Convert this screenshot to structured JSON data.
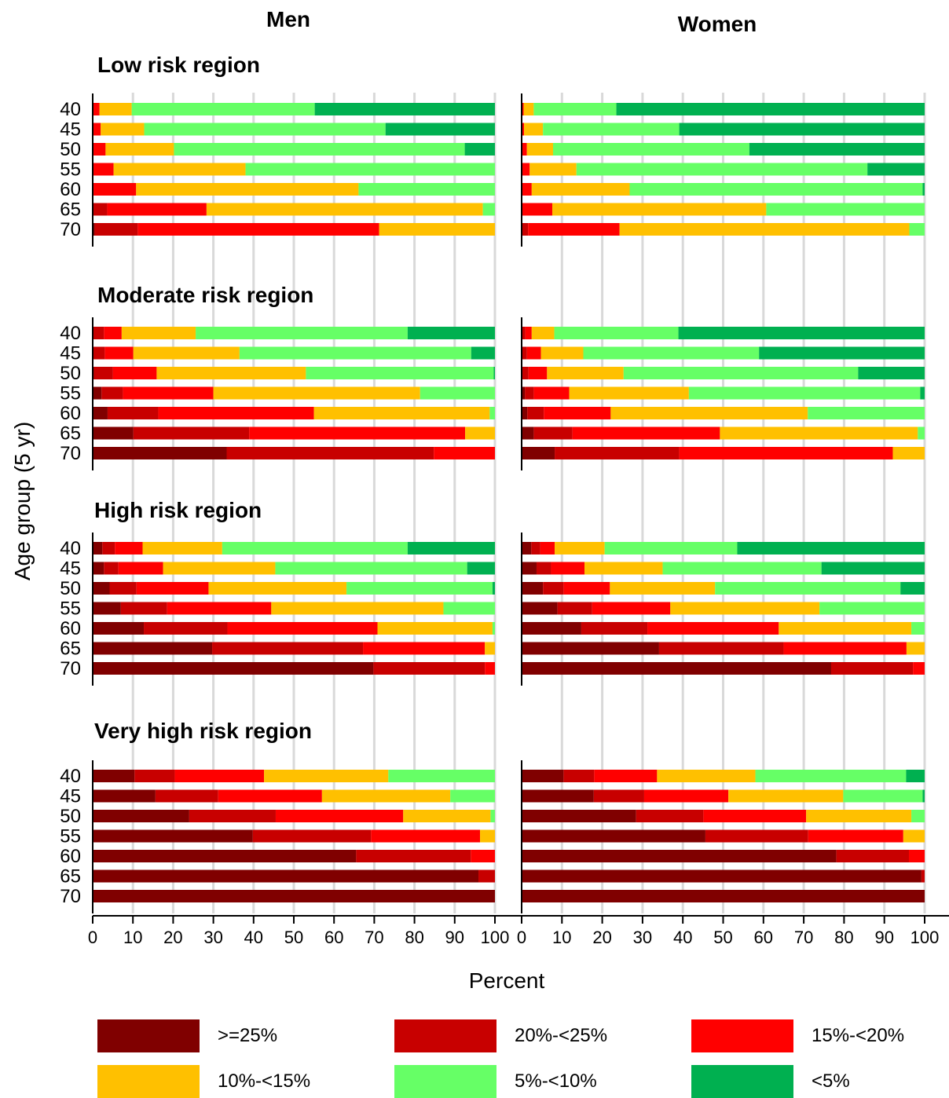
{
  "chart_data": {
    "type": "bar",
    "orientation": "horizontal",
    "stacked": true,
    "columns": [
      "Men",
      "Women"
    ],
    "ylabel": "Age group (5 yr)",
    "xlabel": "Percent",
    "xlim": [
      0,
      100
    ],
    "xticks": [
      0,
      10,
      20,
      30,
      40,
      50,
      60,
      70,
      80,
      90,
      100
    ],
    "age_groups": [
      "40",
      "45",
      "50",
      "55",
      "60",
      "65",
      "70"
    ],
    "grid": "vertical",
    "legend": {
      "placement": "bottom",
      "entries": [
        {
          "label": ">=25%",
          "color": "#800000"
        },
        {
          "label": "20%-<25%",
          "color": "#C80000"
        },
        {
          "label": "15%-<20%",
          "color": "#FF0000"
        },
        {
          "label": "10%-<15%",
          "color": "#FFC000"
        },
        {
          "label": "5%-<10%",
          "color": "#66FF66"
        },
        {
          "label": "<5%",
          "color": "#00B050"
        }
      ]
    },
    "panels": [
      {
        "title": "Low risk region",
        "men": [
          [
            0,
            0,
            1.7,
            8.0,
            45.5,
            44.8
          ],
          [
            0,
            0,
            2.0,
            10.8,
            60.0,
            27.2
          ],
          [
            0,
            0,
            3.2,
            17.0,
            72.3,
            7.5
          ],
          [
            0,
            0,
            5.2,
            32.8,
            62.0,
            0
          ],
          [
            0,
            0.2,
            10.6,
            55.3,
            33.9,
            0
          ],
          [
            0,
            3.6,
            24.7,
            68.7,
            3.0,
            0
          ],
          [
            0.5,
            10.7,
            60.0,
            28.8,
            0,
            0
          ]
        ],
        "women": [
          [
            0,
            0,
            0.5,
            2.5,
            20.5,
            76.5
          ],
          [
            0,
            0,
            0.6,
            4.7,
            33.8,
            60.9
          ],
          [
            0,
            0,
            1.3,
            6.5,
            48.7,
            43.5
          ],
          [
            0,
            0,
            2.0,
            11.6,
            72.2,
            14.2
          ],
          [
            0,
            0,
            2.5,
            24.3,
            72.7,
            0.5
          ],
          [
            0,
            0,
            7.6,
            53.1,
            39.3,
            0
          ],
          [
            0,
            1.6,
            22.7,
            71.9,
            3.8,
            0
          ]
        ]
      },
      {
        "title": "Moderate risk region",
        "men": [
          [
            0,
            2.8,
            4.4,
            18.4,
            52.7,
            21.7
          ],
          [
            0,
            3.0,
            7.1,
            26.4,
            57.6,
            5.9
          ],
          [
            0.3,
            4.7,
            10.9,
            37.1,
            46.7,
            0.3
          ],
          [
            2.2,
            5.3,
            22.5,
            51.4,
            18.6,
            0
          ],
          [
            3.7,
            12.6,
            38.7,
            43.7,
            1.3,
            0
          ],
          [
            10.1,
            28.8,
            53.7,
            7.4,
            0,
            0
          ],
          [
            33.3,
            51.5,
            15.2,
            0,
            0,
            0
          ]
        ],
        "women": [
          [
            0,
            0.9,
            1.6,
            5.6,
            30.8,
            61.1
          ],
          [
            0,
            1.3,
            3.5,
            10.5,
            43.6,
            41.1
          ],
          [
            0.2,
            1.5,
            4.6,
            19.0,
            58.2,
            16.5
          ],
          [
            0.8,
            2.2,
            8.8,
            29.7,
            57.4,
            1.1
          ],
          [
            1.4,
            4.1,
            16.6,
            48.9,
            29.0,
            0
          ],
          [
            3.0,
            9.6,
            36.6,
            49.1,
            1.7,
            0
          ],
          [
            8.2,
            30.9,
            53.0,
            7.9,
            0,
            0
          ]
        ]
      },
      {
        "title": "High risk region",
        "men": [
          [
            2.4,
            3.1,
            6.9,
            19.8,
            46.1,
            21.7
          ],
          [
            2.8,
            3.6,
            11.1,
            27.9,
            47.7,
            6.9
          ],
          [
            4.2,
            6.7,
            17.9,
            34.3,
            36.3,
            0.6
          ],
          [
            7.0,
            11.5,
            25.9,
            42.8,
            12.8,
            0
          ],
          [
            12.7,
            20.8,
            37.3,
            28.6,
            0.6,
            0
          ],
          [
            29.7,
            37.5,
            30.3,
            2.5,
            0,
            0
          ],
          [
            69.8,
            27.7,
            2.5,
            0,
            0,
            0
          ]
        ],
        "women": [
          [
            2.4,
            2.2,
            3.6,
            12.4,
            32.9,
            46.5
          ],
          [
            3.7,
            3.6,
            8.3,
            19.4,
            39.4,
            25.6
          ],
          [
            5.3,
            5.1,
            11.5,
            26.1,
            46.0,
            6.0
          ],
          [
            8.9,
            8.6,
            19.4,
            37.0,
            26.1,
            0
          ],
          [
            14.8,
            16.4,
            32.6,
            32.9,
            3.3,
            0
          ],
          [
            34.1,
            30.9,
            30.5,
            4.5,
            0,
            0
          ],
          [
            76.8,
            20.3,
            2.9,
            0,
            0,
            0
          ]
        ]
      },
      {
        "title": "Very high risk region",
        "men": [
          [
            10.4,
            10.0,
            22.2,
            30.9,
            26.5,
            0
          ],
          [
            15.6,
            15.6,
            25.8,
            31.9,
            11.1,
            0
          ],
          [
            24.0,
            21.5,
            31.7,
            21.7,
            1.1,
            0
          ],
          [
            39.8,
            29.4,
            27.1,
            3.7,
            0,
            0
          ],
          [
            65.5,
            28.5,
            6.0,
            0,
            0,
            0
          ],
          [
            95.9,
            4.1,
            0,
            0,
            0,
            0
          ],
          [
            100.0,
            0,
            0,
            0,
            0,
            0
          ]
        ],
        "women": [
          [
            10.4,
            7.6,
            15.6,
            24.4,
            37.4,
            4.6
          ],
          [
            17.9,
            12.5,
            20.9,
            28.5,
            19.7,
            0.5
          ],
          [
            28.4,
            16.7,
            25.5,
            26.1,
            3.3,
            0
          ],
          [
            45.6,
            25.5,
            23.6,
            5.3,
            0,
            0
          ],
          [
            78.1,
            18.0,
            3.9,
            0,
            0,
            0
          ],
          [
            99.2,
            0.8,
            0,
            0,
            0,
            0
          ],
          [
            100.0,
            0,
            0,
            0,
            0,
            0
          ]
        ]
      }
    ]
  }
}
